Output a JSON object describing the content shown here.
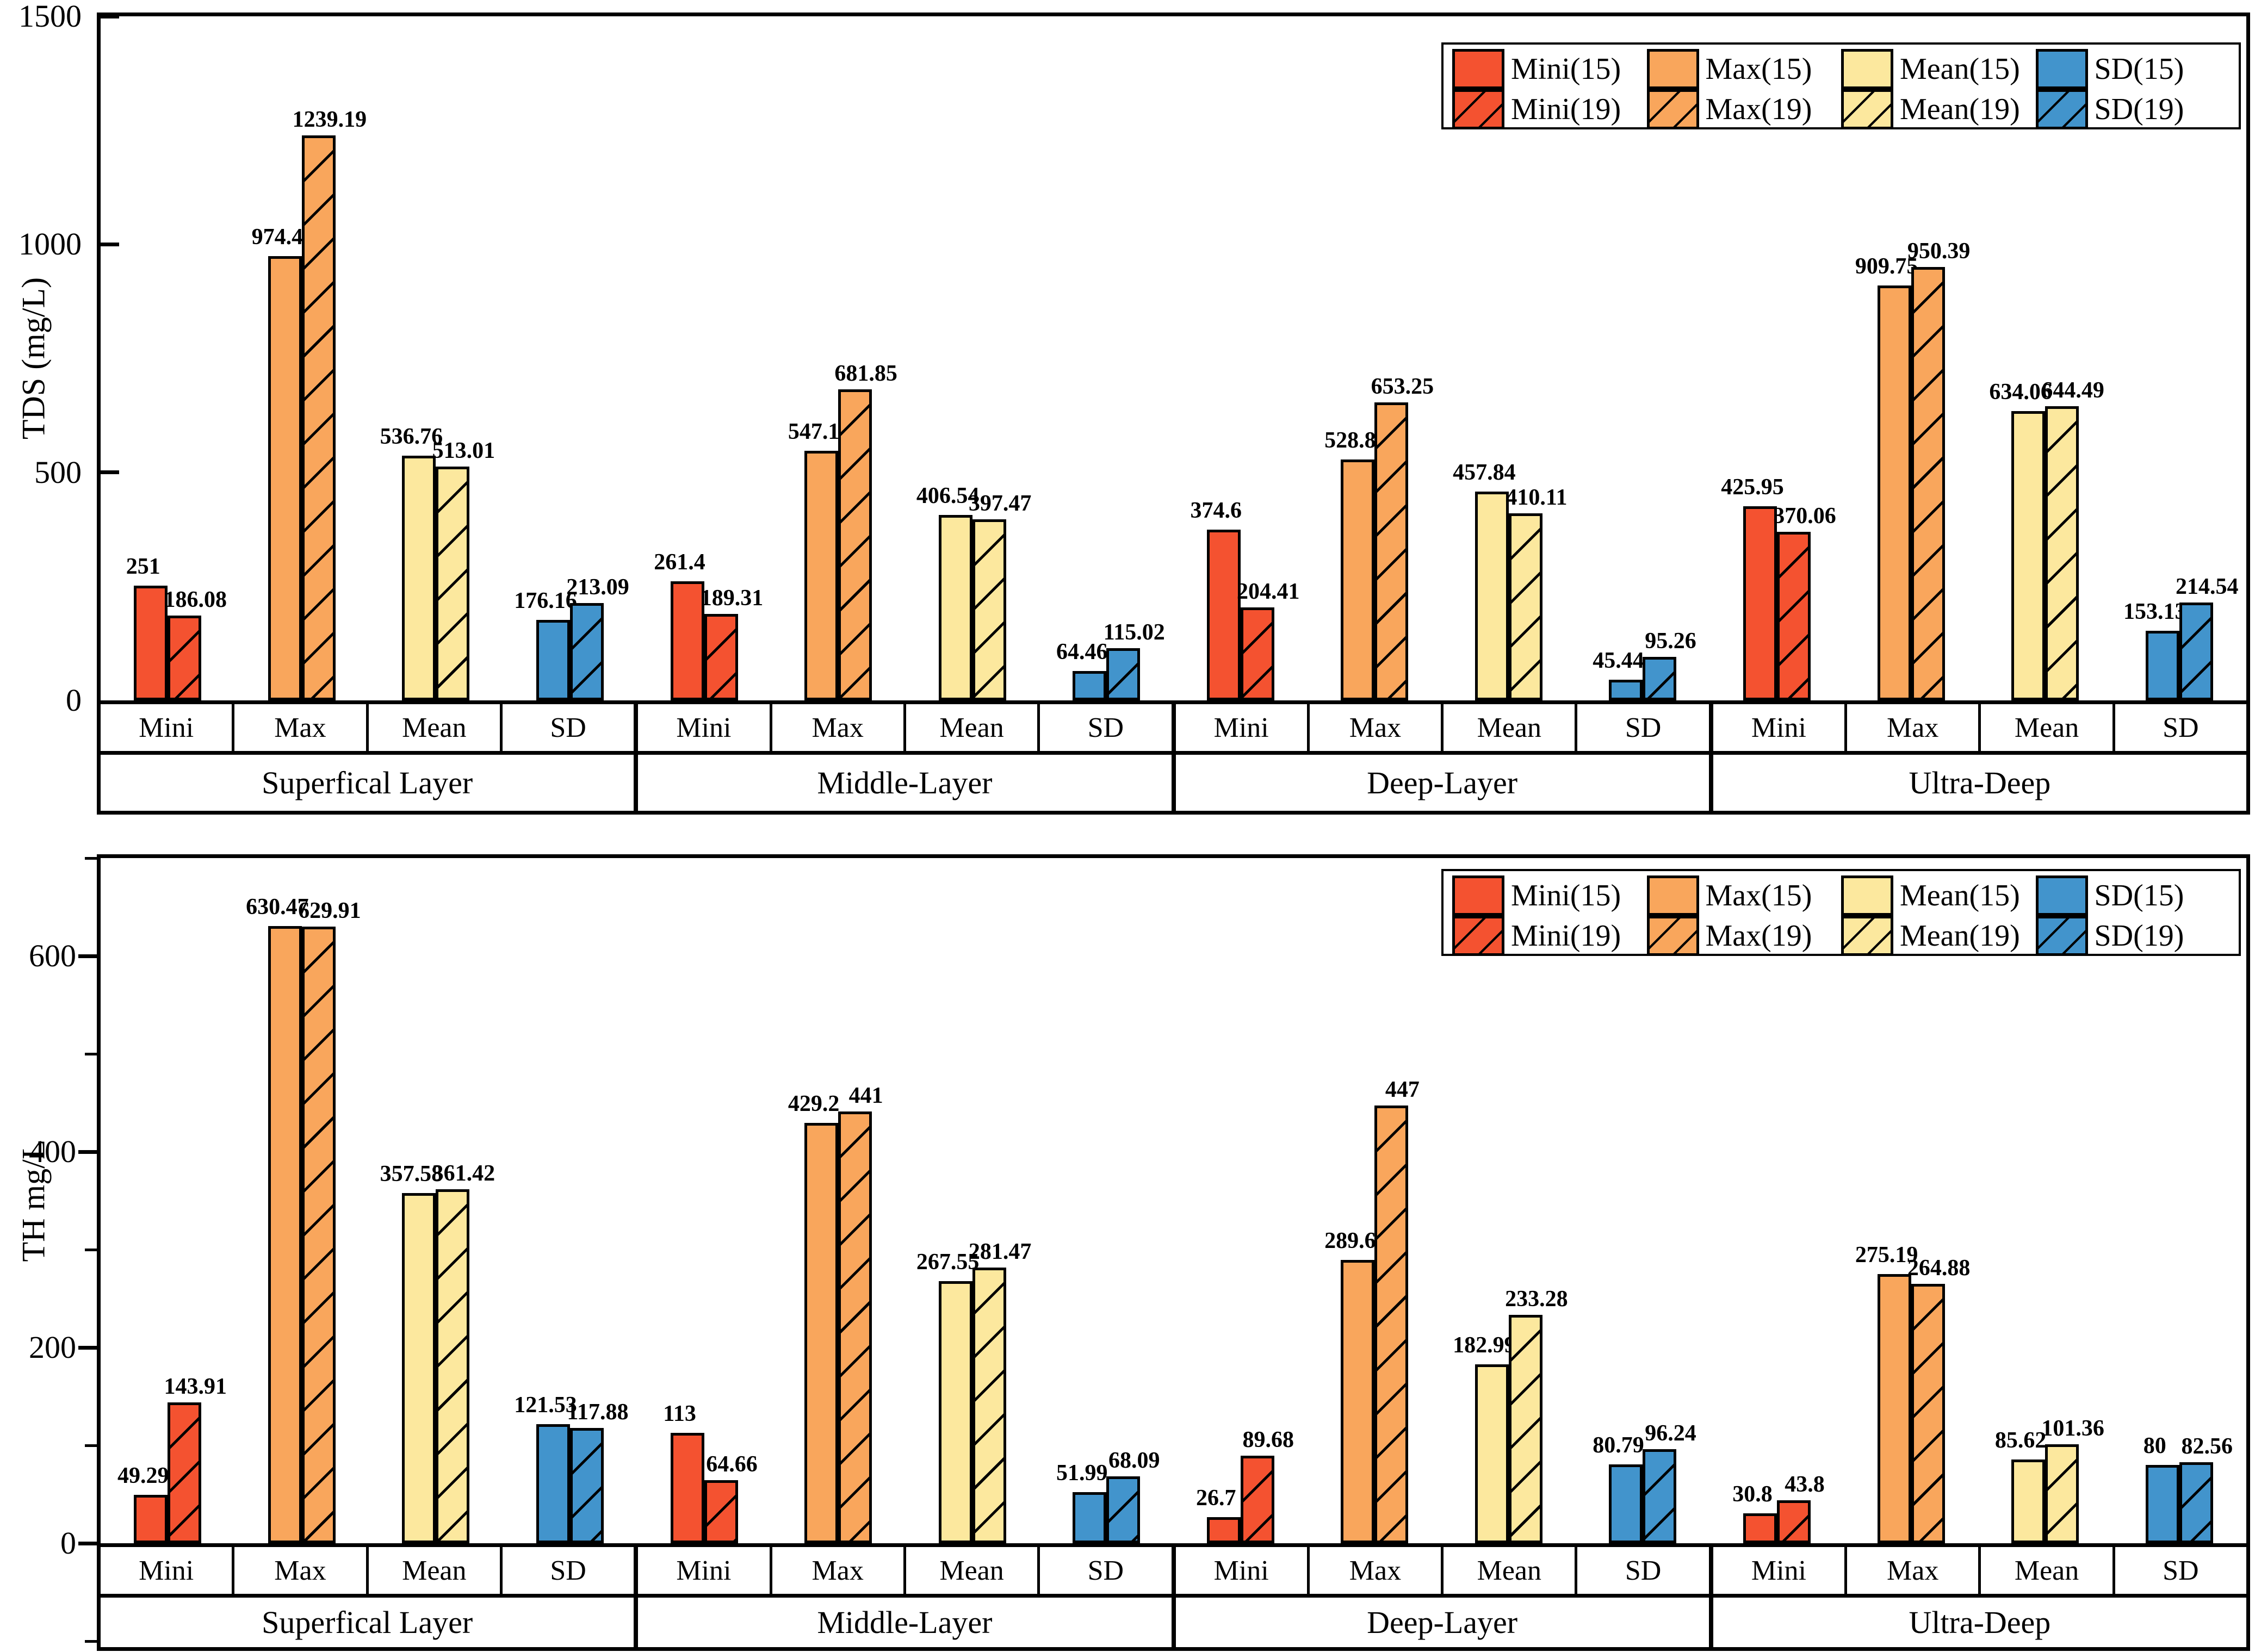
{
  "page": {
    "background": "#FFFFFF"
  },
  "colors": {
    "series": [
      "#F45230",
      "#F9A65C",
      "#FCE89E",
      "#4294CC"
    ],
    "outline": "#000000",
    "hatch": "#000000",
    "background": "#FFFFFF"
  },
  "legend": {
    "rows": [
      [
        "Mini(15)",
        "Max(15)",
        "Mean(15)",
        "SD(15)"
      ],
      [
        "Mini(19)",
        "Max(19)",
        "Mean(19)",
        "SD(19)"
      ]
    ]
  },
  "chart_data": [
    {
      "type": "bar",
      "title": "",
      "xlabel": "",
      "ylabel": "TDS (mg/L)",
      "ylim": [
        0,
        1500
      ],
      "yticks": [
        0,
        500,
        1000,
        1500
      ],
      "ytick_labels": [
        "0",
        "500",
        "1000",
        "1500"
      ],
      "minor_yticks": [],
      "grid": false,
      "legend_position": "top-right",
      "groups": [
        "Superfical Layer",
        "Middle-Layer",
        "Deep-Layer",
        "Ultra-Deep"
      ],
      "categories": [
        "Mini",
        "Max",
        "Mean",
        "SD"
      ],
      "series": [
        {
          "name": "15",
          "hatch": false,
          "values": [
            [
              "251",
              "974.4",
              "536.76",
              "176.16"
            ],
            [
              "261.4",
              "547.1",
              "406.54",
              "64.46"
            ],
            [
              "374.6",
              "528.8",
              "457.84",
              "45.44"
            ],
            [
              "425.95",
              "909.75",
              "634.06",
              "153.13"
            ]
          ]
        },
        {
          "name": "19",
          "hatch": true,
          "values": [
            [
              "186.08",
              "1239.19",
              "513.01",
              "213.09"
            ],
            [
              "189.31",
              "681.85",
              "397.47",
              "115.02"
            ],
            [
              "204.41",
              "653.25",
              "410.11",
              "95.26"
            ],
            [
              "370.06",
              "950.39",
              "644.49",
              "214.54"
            ]
          ]
        }
      ]
    },
    {
      "type": "bar",
      "title": "",
      "xlabel": "",
      "ylabel": "TH mg/L",
      "ylim": [
        0,
        700
      ],
      "yticks": [
        0,
        200,
        400,
        600
      ],
      "ytick_labels": [
        "0",
        "200",
        "400",
        "600"
      ],
      "minor_yticks": [
        -100,
        100,
        300,
        500,
        700
      ],
      "grid": false,
      "legend_position": "top-right",
      "groups": [
        "Superfical Layer",
        "Middle-Layer",
        "Deep-Layer",
        "Ultra-Deep"
      ],
      "categories": [
        "Mini",
        "Max",
        "Mean",
        "SD"
      ],
      "series": [
        {
          "name": "15",
          "hatch": false,
          "values": [
            [
              "49.29",
              "630.47",
              "357.58",
              "121.53"
            ],
            [
              "113",
              "429.2",
              "267.55",
              "51.99"
            ],
            [
              "26.7",
              "289.6",
              "182.99",
              "80.79"
            ],
            [
              "30.8",
              "275.19",
              "85.62",
              "80"
            ]
          ]
        },
        {
          "name": "19",
          "hatch": true,
          "values": [
            [
              "143.91",
              "629.91",
              "361.42",
              "117.88"
            ],
            [
              "64.66",
              "441",
              "281.47",
              "68.09"
            ],
            [
              "89.68",
              "447",
              "233.28",
              "96.24"
            ],
            [
              "43.8",
              "264.88",
              "101.36",
              "82.56"
            ]
          ]
        }
      ]
    }
  ]
}
